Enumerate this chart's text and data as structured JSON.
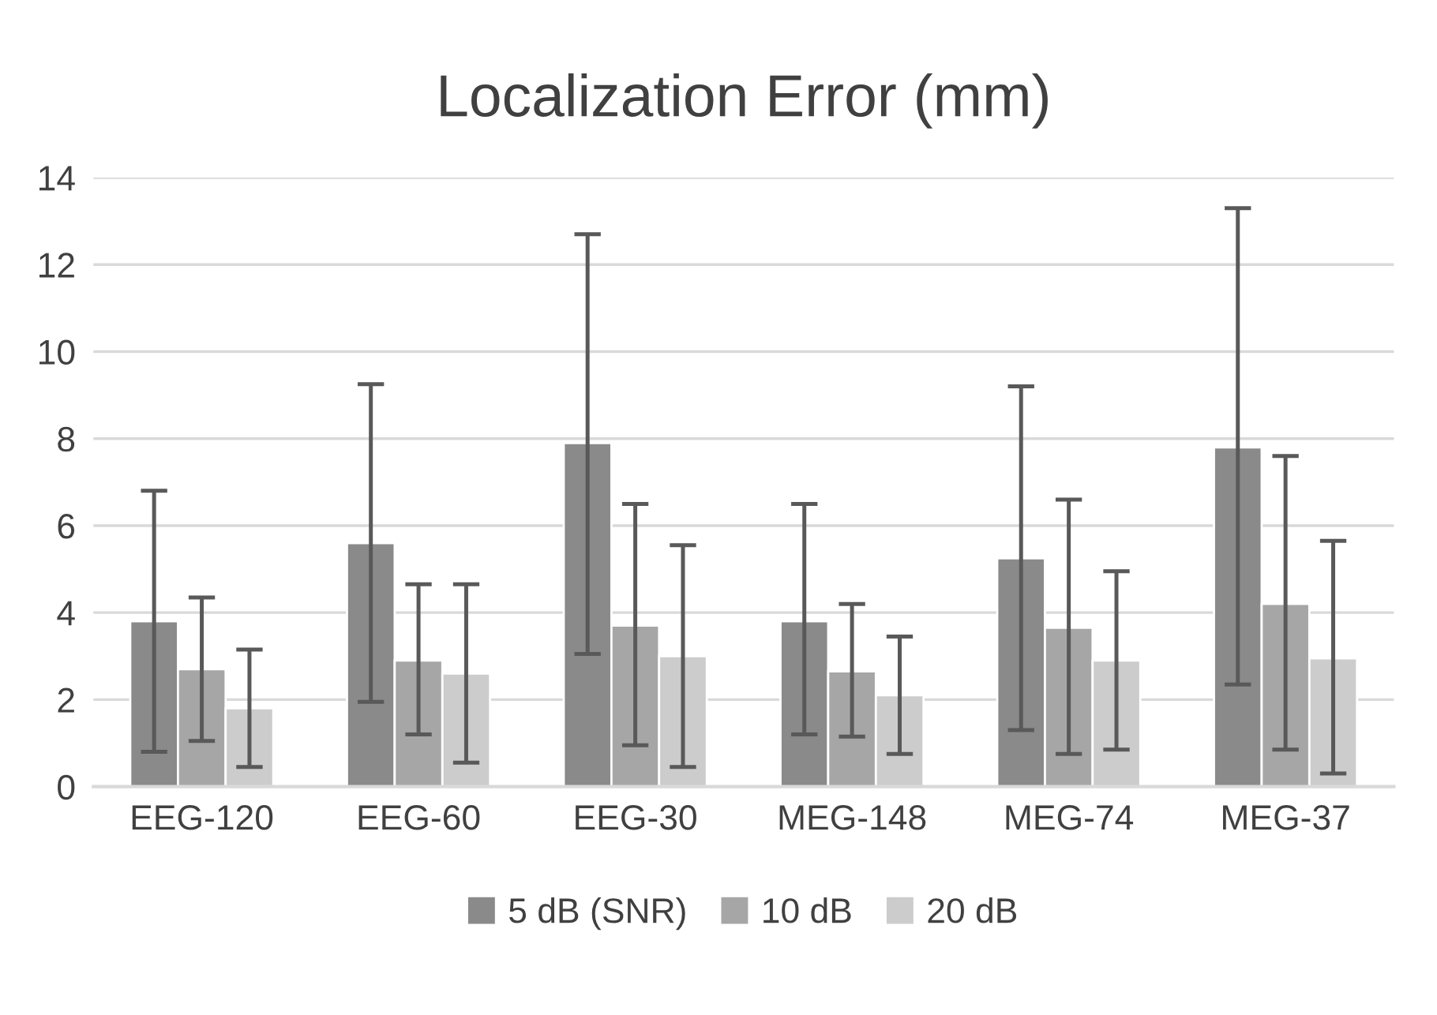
{
  "chart_data": {
    "type": "bar",
    "title": "Localization Error (mm)",
    "categories": [
      "EEG-120",
      "EEG-60",
      "EEG-30",
      "MEG-148",
      "MEG-74",
      "MEG-37"
    ],
    "series": [
      {
        "name": "5 dB (SNR)",
        "color": "#8a8a8a",
        "values": [
          3.8,
          5.6,
          7.9,
          3.8,
          5.25,
          7.8
        ],
        "errors": [
          [
            0.8,
            6.8
          ],
          [
            1.95,
            9.25
          ],
          [
            3.05,
            12.7
          ],
          [
            1.2,
            6.5
          ],
          [
            1.3,
            9.2
          ],
          [
            2.35,
            13.3
          ]
        ]
      },
      {
        "name": "10 dB",
        "color": "#a6a6a6",
        "values": [
          2.7,
          2.9,
          3.7,
          2.65,
          3.65,
          4.2
        ],
        "errors": [
          [
            1.05,
            4.35
          ],
          [
            1.2,
            4.65
          ],
          [
            0.95,
            6.5
          ],
          [
            1.15,
            4.2
          ],
          [
            0.75,
            6.6
          ],
          [
            0.85,
            7.6
          ]
        ]
      },
      {
        "name": "20 dB",
        "color": "#cccccc",
        "values": [
          1.8,
          2.6,
          3.0,
          2.1,
          2.9,
          2.95
        ],
        "errors": [
          [
            0.45,
            3.15
          ],
          [
            0.55,
            4.65
          ],
          [
            0.45,
            5.55
          ],
          [
            0.75,
            3.45
          ],
          [
            0.85,
            4.95
          ],
          [
            0.3,
            5.65
          ]
        ]
      }
    ],
    "ylim": [
      0,
      14
    ],
    "yticks": [
      0,
      2,
      4,
      6,
      8,
      10,
      12,
      14
    ],
    "grid": "y",
    "legend": "bottom"
  }
}
